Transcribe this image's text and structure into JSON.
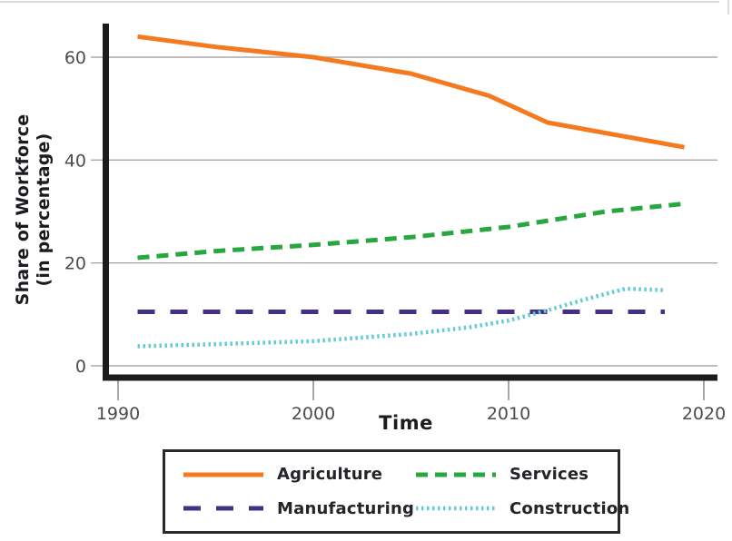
{
  "chart_data": {
    "type": "line",
    "title": "",
    "xlabel": "Time",
    "ylabel_line1": "Share of Workforce",
    "ylabel_line2": "(in percentage)",
    "x_ticks": [
      1990,
      2000,
      2010,
      2020
    ],
    "y_ticks": [
      0,
      20,
      40,
      60
    ],
    "xlim": [
      1990,
      2020.7
    ],
    "ylim": [
      0,
      66.5
    ],
    "grid": "horizontal",
    "legend_position": "bottom",
    "series": [
      {
        "name": "Agriculture",
        "color": "#F5791F",
        "line_style": "solid",
        "x": [
          1991,
          1995,
          2000,
          2005,
          2009,
          2012,
          2019
        ],
        "values": [
          64,
          62,
          60,
          56.8,
          52.5,
          47.3,
          42.5
        ]
      },
      {
        "name": "Services",
        "color": "#28A73E",
        "line_style": "dashed",
        "x": [
          1991,
          1995,
          2000,
          2005,
          2010,
          2015,
          2019
        ],
        "values": [
          21,
          22.3,
          23.5,
          25,
          27,
          30,
          31.5
        ]
      },
      {
        "name": "Manufacturing",
        "color": "#433086",
        "line_style": "long-dash",
        "x": [
          1991,
          2018
        ],
        "values": [
          10.5,
          10.5
        ]
      },
      {
        "name": "Construction",
        "color": "#62CBD4",
        "line_style": "dotted",
        "x": [
          1991,
          1995,
          2000,
          2005,
          2008,
          2010,
          2012,
          2014,
          2016,
          2018
        ],
        "values": [
          3.8,
          4.2,
          4.8,
          6.2,
          7.5,
          8.8,
          10.8,
          13,
          15,
          14.7
        ]
      }
    ]
  },
  "colors": {
    "axis": "#1c1c1c",
    "gridline": "#a8a8a8",
    "tick_mark": "#8a8a8a",
    "tick_label": "#4c4a4e",
    "text": "#262329"
  }
}
